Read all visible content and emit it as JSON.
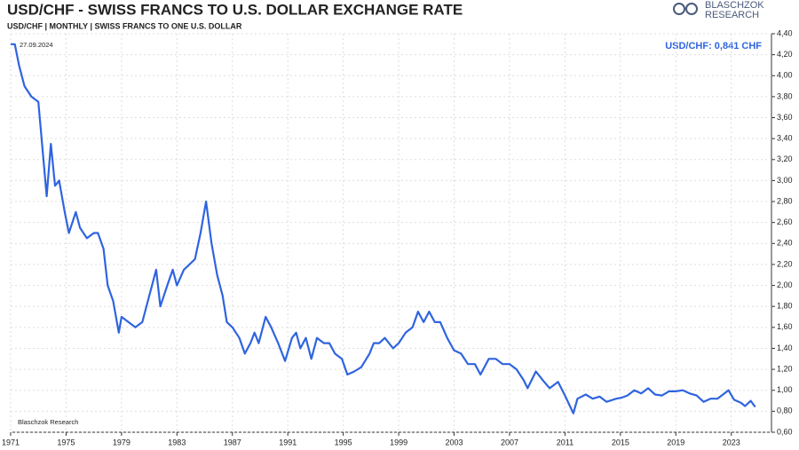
{
  "chart_data": {
    "type": "line",
    "title": "USD/CHF - SWISS FRANCS TO U.S. DOLLAR EXCHANGE RATE",
    "subtitle": "USD/CHF | MONTHLY | SWISS FRANCS TO ONE U.S. DOLLAR",
    "date_label": "27.09.2024",
    "annotation": "USD/CHF: 0,841 CHF",
    "source": "Blaschzok Research",
    "logo": [
      "BLASCHZOK",
      "RESEARCH"
    ],
    "color": "#2f64e0",
    "grid": true,
    "xlim": [
      1971,
      2025.9
    ],
    "ylim": [
      0.6,
      4.4
    ],
    "xticks": [
      1971,
      1975,
      1979,
      1983,
      1987,
      1991,
      1995,
      1999,
      2003,
      2007,
      2011,
      2015,
      2019,
      2023
    ],
    "yticks": [
      {
        "value": 0.6,
        "label": "0,60"
      },
      {
        "value": 0.8,
        "label": "0,80"
      },
      {
        "value": 1.0,
        "label": "1,00"
      },
      {
        "value": 1.2,
        "label": "1,20"
      },
      {
        "value": 1.4,
        "label": "1,40"
      },
      {
        "value": 1.6,
        "label": "1,60"
      },
      {
        "value": 1.8,
        "label": "1,80"
      },
      {
        "value": 2.0,
        "label": "2,00"
      },
      {
        "value": 2.2,
        "label": "2,20"
      },
      {
        "value": 2.4,
        "label": "2,40"
      },
      {
        "value": 2.6,
        "label": "2,60"
      },
      {
        "value": 2.8,
        "label": "2,80"
      },
      {
        "value": 3.0,
        "label": "3,00"
      },
      {
        "value": 3.2,
        "label": "3,20"
      },
      {
        "value": 3.4,
        "label": "3,40"
      },
      {
        "value": 3.6,
        "label": "3,60"
      },
      {
        "value": 3.8,
        "label": "3,80"
      },
      {
        "value": 4.0,
        "label": "4,00"
      },
      {
        "value": 4.2,
        "label": "4,20"
      },
      {
        "value": 4.4,
        "label": "4,40"
      }
    ],
    "x": [
      1971.0,
      1971.3,
      1971.6,
      1972.0,
      1972.5,
      1973.0,
      1973.3,
      1973.6,
      1973.9,
      1974.2,
      1974.5,
      1974.9,
      1975.2,
      1975.7,
      1976.0,
      1976.5,
      1977.0,
      1977.3,
      1977.7,
      1978.0,
      1978.4,
      1978.8,
      1979.0,
      1979.5,
      1980.0,
      1980.5,
      1981.0,
      1981.5,
      1981.8,
      1982.3,
      1982.7,
      1983.0,
      1983.5,
      1983.9,
      1984.3,
      1984.7,
      1985.1,
      1985.5,
      1985.9,
      1986.3,
      1986.6,
      1987.0,
      1987.5,
      1987.9,
      1988.3,
      1988.6,
      1988.9,
      1989.4,
      1989.8,
      1990.3,
      1990.8,
      1991.3,
      1991.6,
      1991.9,
      1992.3,
      1992.7,
      1993.1,
      1993.6,
      1994.0,
      1994.4,
      1994.9,
      1995.3,
      1995.8,
      1996.3,
      1996.9,
      1997.2,
      1997.6,
      1998.0,
      1998.6,
      1999.0,
      1999.5,
      2000.0,
      2000.4,
      2000.8,
      2001.2,
      2001.6,
      2002.0,
      2002.5,
      2003.0,
      2003.5,
      2004.0,
      2004.5,
      2004.9,
      2005.5,
      2006.0,
      2006.5,
      2007.0,
      2007.5,
      2008.0,
      2008.3,
      2008.9,
      2009.5,
      2009.9,
      2010.5,
      2011.0,
      2011.6,
      2011.9,
      2012.5,
      2013.0,
      2013.5,
      2014.0,
      2014.7,
      2015.1,
      2015.5,
      2016.0,
      2016.5,
      2017.0,
      2017.5,
      2018.0,
      2018.5,
      2019.0,
      2019.5,
      2020.0,
      2020.5,
      2021.0,
      2021.5,
      2022.0,
      2022.8,
      2023.2,
      2023.7,
      2024.0,
      2024.4,
      2024.73
    ],
    "values": [
      4.3,
      4.3,
      4.1,
      3.9,
      3.8,
      3.75,
      3.3,
      2.85,
      3.35,
      2.95,
      3.0,
      2.7,
      2.5,
      2.7,
      2.55,
      2.45,
      2.5,
      2.5,
      2.35,
      2.0,
      1.85,
      1.55,
      1.7,
      1.65,
      1.6,
      1.65,
      1.9,
      2.15,
      1.8,
      2.0,
      2.15,
      2.0,
      2.15,
      2.2,
      2.25,
      2.5,
      2.8,
      2.4,
      2.1,
      1.9,
      1.65,
      1.6,
      1.5,
      1.35,
      1.45,
      1.55,
      1.45,
      1.7,
      1.6,
      1.45,
      1.28,
      1.5,
      1.55,
      1.4,
      1.5,
      1.3,
      1.5,
      1.45,
      1.45,
      1.35,
      1.3,
      1.15,
      1.18,
      1.22,
      1.35,
      1.45,
      1.45,
      1.5,
      1.4,
      1.45,
      1.55,
      1.6,
      1.75,
      1.65,
      1.75,
      1.65,
      1.65,
      1.5,
      1.38,
      1.35,
      1.25,
      1.25,
      1.15,
      1.3,
      1.3,
      1.25,
      1.25,
      1.2,
      1.1,
      1.02,
      1.18,
      1.08,
      1.02,
      1.08,
      0.95,
      0.78,
      0.92,
      0.96,
      0.92,
      0.94,
      0.89,
      0.92,
      0.93,
      0.95,
      1.0,
      0.97,
      1.02,
      0.96,
      0.95,
      0.99,
      0.99,
      1.0,
      0.97,
      0.95,
      0.89,
      0.92,
      0.92,
      1.0,
      0.91,
      0.88,
      0.85,
      0.9,
      0.841
    ]
  }
}
